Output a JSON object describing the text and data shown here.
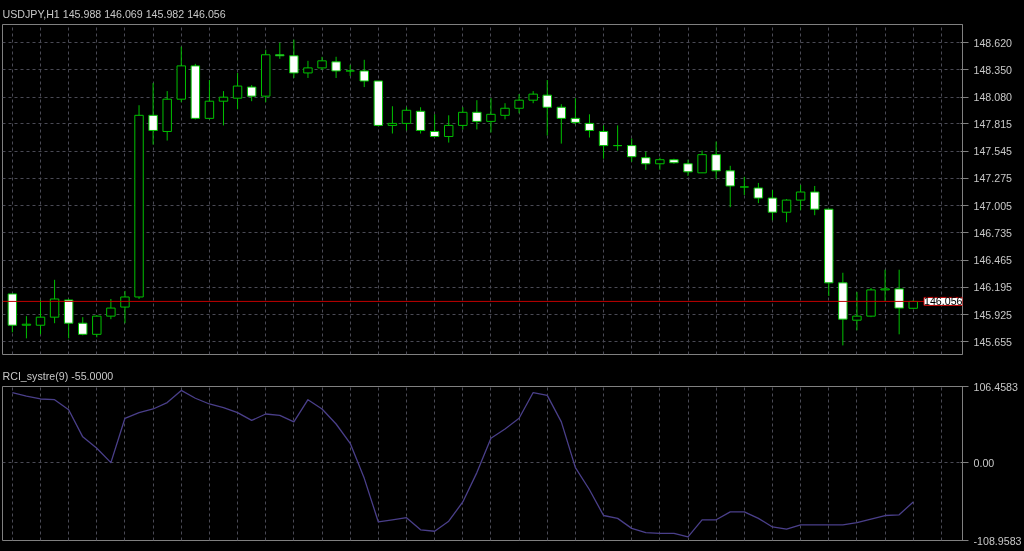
{
  "chart_data": [
    {
      "type": "candlestick",
      "title": "USDJPY,H1 145.988 146.069 145.982 146.056",
      "color": "#00c000",
      "grid": true,
      "tick_labels": "y",
      "categories": [
        null,
        null,
        null,
        null,
        null,
        null,
        null,
        null,
        null,
        null,
        null,
        null,
        null,
        null,
        null,
        null,
        null,
        null,
        null,
        null,
        null,
        null,
        null,
        null,
        null,
        null,
        null,
        null,
        null,
        null,
        null,
        null,
        null,
        null,
        null,
        null,
        null,
        null,
        null,
        null,
        null,
        null,
        null,
        null,
        null,
        null,
        null,
        null,
        null,
        null,
        null,
        null,
        null,
        null,
        null,
        null,
        null,
        null,
        null,
        null,
        null,
        null,
        null,
        null,
        null
      ],
      "ohlc": [
        [
          146.13,
          146.13,
          145.75,
          145.82
        ],
        [
          145.82,
          145.91,
          145.69,
          145.83
        ],
        [
          145.82,
          146.07,
          145.73,
          145.9
        ],
        [
          145.9,
          146.27,
          145.84,
          146.08
        ],
        [
          146.07,
          146.08,
          145.69,
          145.84
        ],
        [
          145.84,
          145.9,
          145.72,
          145.73
        ],
        [
          145.73,
          145.92,
          145.7,
          145.91
        ],
        [
          145.91,
          146.08,
          145.88,
          145.99
        ],
        [
          146.0,
          146.16,
          145.84,
          146.1
        ],
        [
          146.1,
          148.0,
          146.08,
          147.9
        ],
        [
          147.9,
          148.22,
          147.61,
          147.75
        ],
        [
          147.74,
          148.14,
          147.65,
          148.06
        ],
        [
          148.06,
          148.58,
          148.03,
          148.39
        ],
        [
          148.39,
          148.41,
          147.86,
          147.87
        ],
        [
          147.87,
          148.25,
          147.86,
          148.04
        ],
        [
          148.04,
          148.14,
          147.8,
          148.08
        ],
        [
          148.07,
          148.32,
          147.96,
          148.19
        ],
        [
          148.18,
          148.2,
          148.04,
          148.09
        ],
        [
          148.09,
          148.55,
          148.03,
          148.5
        ],
        [
          148.5,
          148.62,
          148.46,
          148.49
        ],
        [
          148.49,
          148.65,
          148.27,
          148.32
        ],
        [
          148.32,
          148.44,
          148.27,
          148.37
        ],
        [
          148.37,
          148.48,
          148.35,
          148.44
        ],
        [
          148.43,
          148.48,
          148.27,
          148.34
        ],
        [
          148.34,
          148.4,
          148.29,
          148.34
        ],
        [
          148.34,
          148.45,
          148.18,
          148.24
        ],
        [
          148.24,
          148.24,
          147.79,
          147.8
        ],
        [
          147.8,
          147.99,
          147.72,
          147.82
        ],
        [
          147.82,
          147.98,
          147.75,
          147.95
        ],
        [
          147.94,
          147.98,
          147.72,
          147.75
        ],
        [
          147.74,
          147.91,
          147.69,
          147.69
        ],
        [
          147.69,
          147.9,
          147.63,
          147.8
        ],
        [
          147.8,
          147.98,
          147.76,
          147.93
        ],
        [
          147.93,
          148.05,
          147.76,
          147.84
        ],
        [
          147.84,
          148.07,
          147.73,
          147.91
        ],
        [
          147.9,
          148.02,
          147.86,
          147.97
        ],
        [
          147.97,
          148.11,
          147.92,
          148.05
        ],
        [
          148.05,
          148.14,
          148.02,
          148.11
        ],
        [
          148.1,
          148.25,
          147.7,
          147.98
        ],
        [
          147.98,
          148.01,
          147.62,
          147.87
        ],
        [
          147.87,
          148.07,
          147.81,
          147.83
        ],
        [
          147.82,
          147.91,
          147.68,
          147.75
        ],
        [
          147.74,
          147.8,
          147.47,
          147.6
        ],
        [
          147.6,
          147.8,
          147.55,
          147.6
        ],
        [
          147.6,
          147.67,
          147.44,
          147.49
        ],
        [
          147.48,
          147.54,
          147.36,
          147.42
        ],
        [
          147.42,
          147.48,
          147.36,
          147.46
        ],
        [
          147.46,
          147.47,
          147.42,
          147.43
        ],
        [
          147.42,
          147.46,
          147.3,
          147.34
        ],
        [
          147.33,
          147.55,
          147.33,
          147.51
        ],
        [
          147.51,
          147.64,
          147.27,
          147.35
        ],
        [
          147.35,
          147.4,
          146.99,
          147.2
        ],
        [
          147.19,
          147.29,
          147.11,
          147.19
        ],
        [
          147.18,
          147.23,
          147.03,
          147.08
        ],
        [
          147.08,
          147.16,
          146.86,
          146.94
        ],
        [
          146.94,
          147.07,
          146.84,
          147.06
        ],
        [
          147.06,
          147.21,
          146.96,
          147.14
        ],
        [
          147.14,
          147.2,
          146.91,
          146.97
        ],
        [
          146.97,
          146.97,
          146.11,
          146.24
        ],
        [
          146.24,
          146.34,
          145.62,
          145.88
        ],
        [
          145.87,
          146.15,
          145.77,
          145.91
        ],
        [
          145.91,
          146.19,
          145.9,
          146.17
        ],
        [
          146.17,
          146.37,
          146.06,
          146.18
        ],
        [
          146.18,
          146.37,
          145.73,
          145.99
        ],
        [
          145.988,
          146.069,
          145.982,
          146.056
        ]
      ],
      "ylim": [
        145.53,
        148.8
      ],
      "yticks": [
        145.655,
        145.925,
        146.195,
        146.465,
        146.735,
        147.005,
        147.275,
        147.545,
        147.815,
        {
          "value": 148.08,
          "label": "148.080"
        },
        {
          "value": 148.35,
          "label": "148.350"
        },
        {
          "value": 148.62,
          "label": "148.620"
        }
      ],
      "ref_lines": [
        {
          "axis": "y",
          "value": 146.056,
          "label": "146.056",
          "color": "#c00000"
        }
      ]
    },
    {
      "type": "line",
      "title": "RCI_systre(9) -55.0000",
      "grid": true,
      "tick_labels": "y",
      "categories": [
        null,
        null,
        null,
        null,
        null,
        null,
        null,
        null,
        null,
        null,
        null,
        null,
        null,
        null,
        null,
        null,
        null,
        null,
        null,
        null,
        null,
        null,
        null,
        null,
        null,
        null,
        null,
        null,
        null,
        null,
        null,
        null,
        null,
        null,
        null,
        null,
        null,
        null,
        null,
        null,
        null,
        null,
        null,
        null,
        null,
        null,
        null,
        null,
        null,
        null,
        null,
        null,
        null,
        null,
        null,
        null,
        null,
        null,
        null,
        null,
        null,
        null,
        null,
        null,
        null
      ],
      "series": [
        {
          "color": "#4a3f8a",
          "values": [
            98,
            93,
            89,
            88,
            74,
            36,
            20,
            0,
            62,
            70,
            75,
            84,
            101,
            90,
            82,
            77,
            70,
            59,
            68,
            66,
            57,
            88,
            75,
            54,
            27,
            -22,
            -83,
            -80,
            -77,
            -94,
            -96,
            -82,
            -55,
            -14,
            34,
            47,
            62,
            98,
            94,
            57,
            -7,
            -38,
            -74,
            -78,
            -92,
            -98,
            -99,
            -99,
            -104,
            -80,
            -80,
            -69,
            -69,
            -78,
            -90,
            -93,
            -87,
            -87,
            -87,
            -87,
            -84,
            -79,
            -74,
            -73,
            -55
          ]
        }
      ],
      "ylim": [
        -108.9583,
        106.4583
      ],
      "yticks": [
        {
          "value": -108.9583,
          "label": "-108.9583"
        },
        {
          "value": 0,
          "label": "0.00"
        },
        {
          "value": 106.4583,
          "label": "106.4583"
        }
      ]
    }
  ]
}
